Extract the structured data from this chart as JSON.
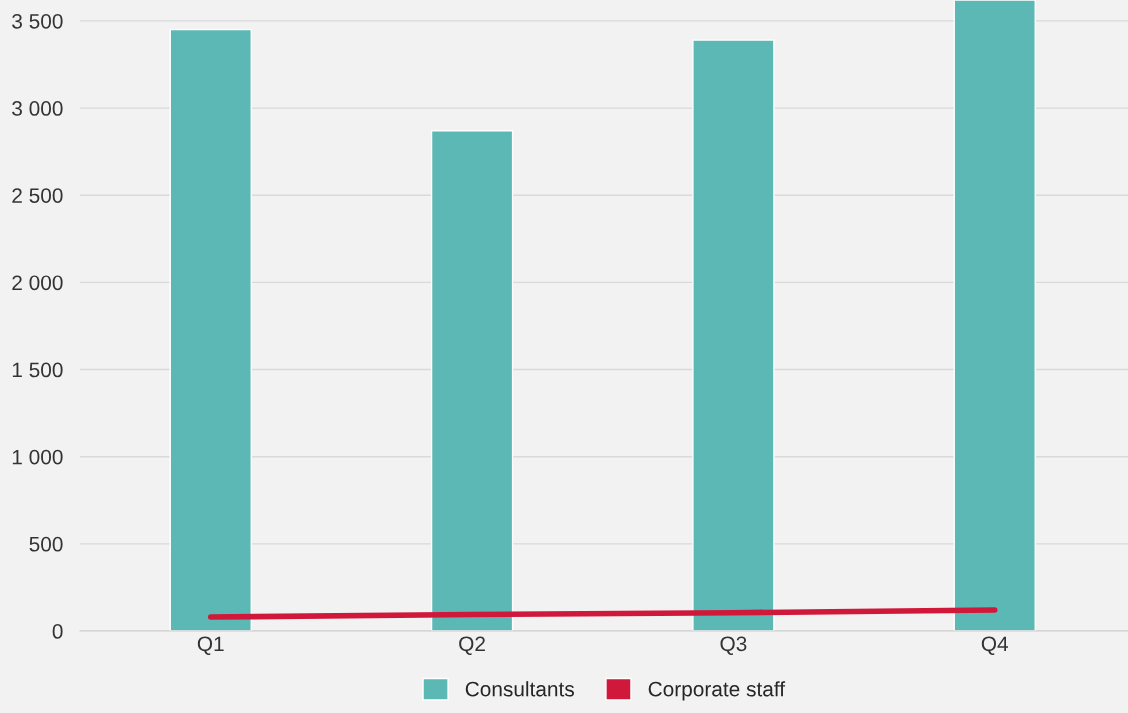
{
  "chart_data": {
    "type": "bar",
    "categories": [
      "Q1",
      "Q2",
      "Q3",
      "Q4"
    ],
    "series": [
      {
        "name": "Consultants",
        "color": "#5bb8b4",
        "values": [
          3450,
          2870,
          3390,
          3620
        ]
      },
      {
        "name": "Corporate staff",
        "type": "line",
        "color": "#d0193a",
        "marker": "none",
        "values": [
          80,
          95,
          105,
          120
        ]
      }
    ],
    "ylim": [
      0,
      3620
    ],
    "yticks": [
      {
        "value": 0,
        "label": "0"
      },
      {
        "value": 500,
        "label": "500"
      },
      {
        "value": 1000,
        "label": "1 000"
      },
      {
        "value": 1500,
        "label": "1 500"
      },
      {
        "value": 2000,
        "label": "2 000"
      },
      {
        "value": 2500,
        "label": "2 500"
      },
      {
        "value": 3000,
        "label": "3 000"
      },
      {
        "value": 3500,
        "label": "3 500"
      }
    ],
    "grid": "y",
    "legend": "bottom"
  }
}
